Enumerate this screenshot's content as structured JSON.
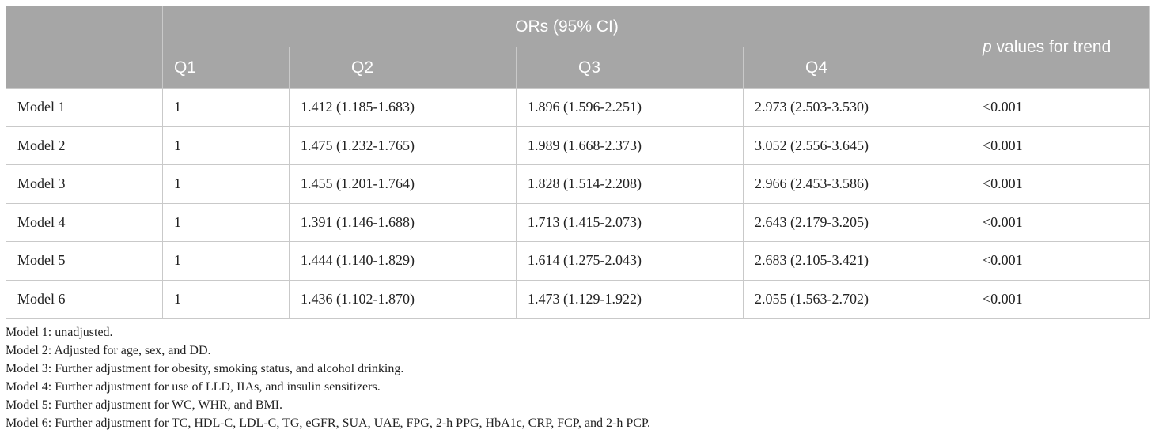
{
  "header": {
    "group_label": "ORs (95% CI)",
    "trend_prefix": "p",
    "trend_rest": " values for trend",
    "quartiles": [
      "Q1",
      "Q2",
      "Q3",
      "Q4"
    ]
  },
  "rows": [
    {
      "model": "Model 1",
      "q1": "1",
      "q2": "1.412 (1.185-1.683)",
      "q3": "1.896 (1.596-2.251)",
      "q4": "2.973 (2.503-3.530)",
      "p": "<0.001"
    },
    {
      "model": "Model 2",
      "q1": "1",
      "q2": "1.475 (1.232-1.765)",
      "q3": "1.989 (1.668-2.373)",
      "q4": "3.052 (2.556-3.645)",
      "p": "<0.001"
    },
    {
      "model": "Model 3",
      "q1": "1",
      "q2": "1.455 (1.201-1.764)",
      "q3": "1.828 (1.514-2.208)",
      "q4": "2.966 (2.453-3.586)",
      "p": "<0.001"
    },
    {
      "model": "Model 4",
      "q1": "1",
      "q2": "1.391 (1.146-1.688)",
      "q3": "1.713 (1.415-2.073)",
      "q4": "2.643 (2.179-3.205)",
      "p": "<0.001"
    },
    {
      "model": "Model 5",
      "q1": "1",
      "q2": "1.444 (1.140-1.829)",
      "q3": "1.614 (1.275-2.043)",
      "q4": "2.683 (2.105-3.421)",
      "p": "<0.001"
    },
    {
      "model": "Model 6",
      "q1": "1",
      "q2": "1.436 (1.102-1.870)",
      "q3": "1.473 (1.129-1.922)",
      "q4": "2.055 (1.563-2.702)",
      "p": "<0.001"
    }
  ],
  "notes": [
    "Model 1: unadjusted.",
    "Model 2: Adjusted for age, sex, and DD.",
    "Model 3: Further adjustment for obesity, smoking status, and alcohol drinking.",
    "Model 4: Further adjustment for use of LLD, IIAs, and insulin sensitizers.",
    "Model 5: Further adjustment for WC, WHR, and BMI.",
    "Model 6: Further adjustment for TC, HDL-C, LDL-C, TG, eGFR, SUA, UAE, FPG, 2-h PPG, HbA1c, CRP, FCP, and 2-h PCP."
  ],
  "colors": {
    "header_bg": "#a6a6a6",
    "header_text": "#ffffff",
    "border": "#c9c9c9",
    "body_text": "#222222"
  }
}
